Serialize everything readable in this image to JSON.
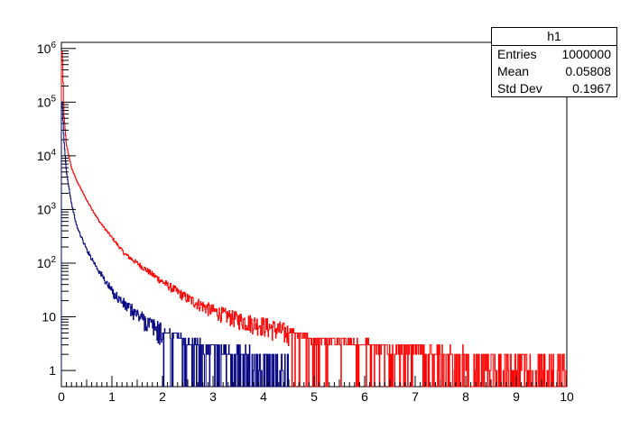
{
  "chart_data": {
    "type": "histogram",
    "title": "",
    "xlabel": "",
    "ylabel": "",
    "xlim": [
      0,
      10
    ],
    "ylim": [
      0.5,
      1300000
    ],
    "yscale": "log",
    "grid": false,
    "x_ticks": [
      "0",
      "1",
      "2",
      "3",
      "4",
      "5",
      "6",
      "7",
      "8",
      "9",
      "10"
    ],
    "y_ticks": [
      {
        "value": 1,
        "label": "1"
      },
      {
        "value": 10,
        "label": "10"
      },
      {
        "value": 100,
        "label": "10^2"
      },
      {
        "value": 1000,
        "label": "10^3"
      },
      {
        "value": 10000,
        "label": "10^4"
      },
      {
        "value": 100000,
        "label": "10^5"
      },
      {
        "value": 1000000,
        "label": "10^6"
      }
    ],
    "series": [
      {
        "color": "#ff0000",
        "x": [
          0.02,
          0.05,
          0.1,
          0.2,
          0.3,
          0.5,
          0.75,
          1.0,
          1.25,
          1.5,
          2.0,
          2.5,
          3.0,
          3.5,
          4.0,
          4.5,
          5.0,
          5.5,
          6.0,
          6.5,
          7.0,
          7.5,
          8.0,
          8.5,
          9.0,
          9.5,
          10.0
        ],
        "y": [
          900000,
          60000,
          16000,
          6000,
          3500,
          1500,
          600,
          300,
          150,
          100,
          45,
          22,
          13,
          9,
          7,
          5,
          3,
          3,
          2.5,
          2,
          2,
          1.5,
          1.3,
          1.2,
          1.1,
          1,
          1
        ]
      },
      {
        "color": "#000080",
        "x": [
          0.02,
          0.05,
          0.1,
          0.2,
          0.3,
          0.5,
          0.75,
          1.0,
          1.25,
          1.5,
          2.0,
          2.5,
          3.0,
          3.5,
          4.0,
          4.5
        ],
        "y": [
          100000,
          20000,
          5000,
          1300,
          500,
          180,
          70,
          30,
          17,
          11,
          5,
          3,
          2,
          1.5,
          1.2,
          1
        ]
      }
    ]
  },
  "stats": {
    "title": "h1",
    "rows": [
      {
        "label": "Entries",
        "value": "1000000"
      },
      {
        "label": "Mean",
        "value": "0.05808"
      },
      {
        "label": "Std Dev",
        "value": "0.1967"
      }
    ]
  }
}
